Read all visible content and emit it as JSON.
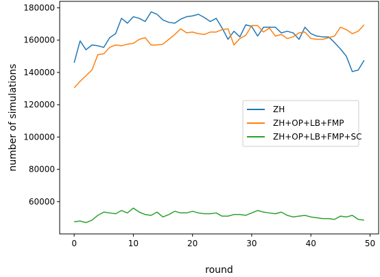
{
  "chart_data": {
    "type": "line",
    "title": "",
    "xlabel": "round",
    "ylabel": "number of simulations",
    "xlim": [
      -2.45,
      51.45
    ],
    "ylim": [
      40000,
      184000
    ],
    "xticks": [
      0,
      10,
      20,
      30,
      40,
      50
    ],
    "yticks": [
      60000,
      80000,
      100000,
      120000,
      140000,
      160000,
      180000
    ],
    "xtick_labels": [
      "0",
      "10",
      "20",
      "30",
      "40",
      "50"
    ],
    "ytick_labels": [
      "60000",
      "80000",
      "100000",
      "120000",
      "140000",
      "160000",
      "180000"
    ],
    "grid": false,
    "legend_position": "center-right",
    "x": [
      0,
      1,
      2,
      3,
      4,
      5,
      6,
      7,
      8,
      9,
      10,
      11,
      12,
      13,
      14,
      15,
      16,
      17,
      18,
      19,
      20,
      21,
      22,
      23,
      24,
      25,
      26,
      27,
      28,
      29,
      30,
      31,
      32,
      33,
      34,
      35,
      36,
      37,
      38,
      39,
      40,
      41,
      42,
      43,
      44,
      45,
      46,
      47,
      48,
      49
    ],
    "series": [
      {
        "name": "ZH",
        "color": "#1f77b4",
        "values": [
          146000,
          159500,
          154000,
          157000,
          156500,
          155500,
          161500,
          164000,
          173500,
          170500,
          174500,
          173500,
          171500,
          177500,
          176000,
          172500,
          171000,
          170500,
          173000,
          174500,
          175000,
          176000,
          174000,
          171500,
          173500,
          167500,
          160500,
          165500,
          162000,
          169500,
          168500,
          162500,
          168000,
          168000,
          168000,
          164500,
          165500,
          164500,
          160500,
          168000,
          164000,
          162500,
          162000,
          162000,
          158500,
          154500,
          150000,
          140500,
          141500,
          147500
        ]
      },
      {
        "name": "ZH+OP+LB+FMP",
        "color": "#ff7f0e",
        "values": [
          130500,
          134500,
          138000,
          141500,
          151000,
          151500,
          155500,
          157000,
          156500,
          157500,
          158000,
          160500,
          161500,
          157000,
          157000,
          157500,
          160500,
          163500,
          167000,
          164500,
          165000,
          164000,
          163500,
          165000,
          165000,
          166500,
          167000,
          157000,
          161000,
          163000,
          169000,
          169000,
          165000,
          167500,
          162500,
          163500,
          161000,
          162000,
          164500,
          165000,
          161000,
          160500,
          160500,
          161500,
          162500,
          168000,
          166500,
          164000,
          165500,
          169500
        ]
      },
      {
        "name": "ZH+OP+LB+FMP+SC",
        "color": "#2ca02c",
        "values": [
          47500,
          48000,
          47000,
          48500,
          51500,
          53500,
          53000,
          52500,
          54500,
          53000,
          56000,
          53500,
          52000,
          51500,
          53500,
          50500,
          52000,
          54000,
          53000,
          53000,
          54000,
          53000,
          52500,
          52500,
          53000,
          51000,
          51000,
          52000,
          52000,
          51500,
          53000,
          54500,
          53500,
          53000,
          52500,
          53500,
          51500,
          50500,
          51000,
          51500,
          50500,
          50000,
          49500,
          49500,
          49000,
          51000,
          50500,
          51500,
          49000,
          48500
        ]
      }
    ]
  }
}
